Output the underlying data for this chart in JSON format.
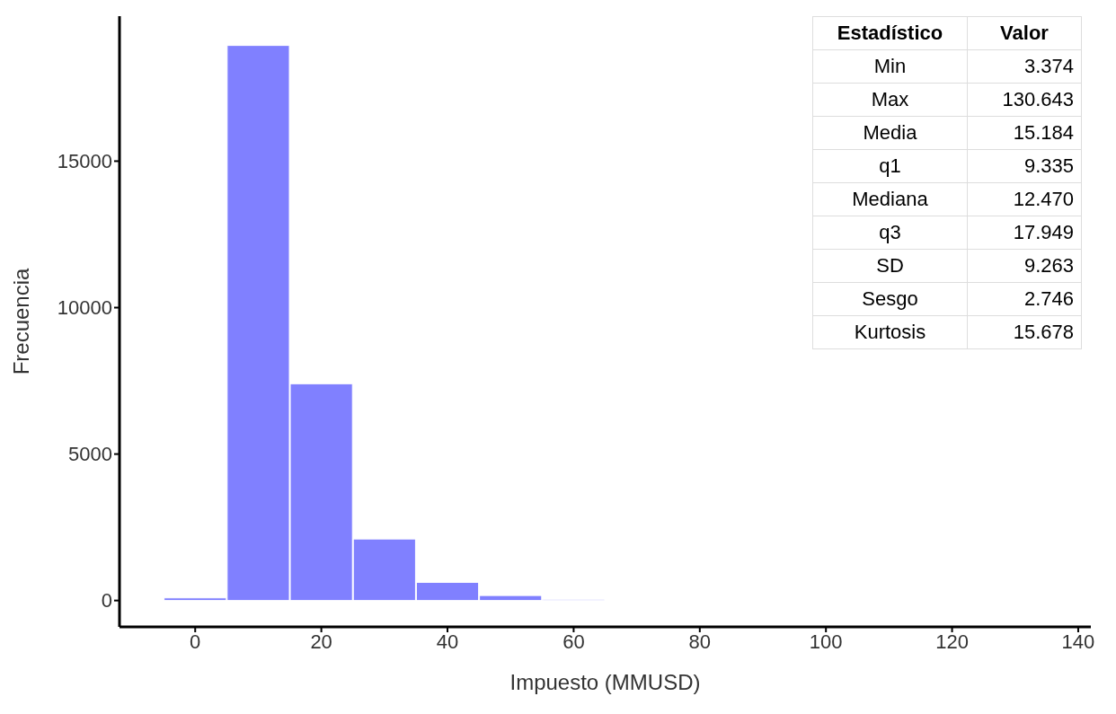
{
  "chart_data": {
    "type": "histogram",
    "xlabel": "Impuesto (MMUSD)",
    "ylabel": "Frecuencia",
    "bins": [
      -5,
      5,
      15,
      25,
      35,
      45,
      55,
      65
    ],
    "values": [
      90,
      18950,
      7400,
      2100,
      620,
      170,
      40
    ],
    "color": "#8080ff",
    "xlim": [
      -12,
      142
    ],
    "xticks": [
      0,
      20,
      40,
      60,
      80,
      100,
      120,
      140
    ],
    "ylim": [
      -900,
      19950
    ],
    "yticks": [
      0,
      5000,
      10000,
      15000
    ],
    "grid": false,
    "annotations": [
      "Estadístico",
      "Valor",
      "Min",
      "3.374",
      "Max",
      "130.643",
      "Media",
      "15.184",
      "q1",
      "9.335",
      "Mediana",
      "12.470",
      "q3",
      "17.949",
      "SD",
      "9.263",
      "Sesgo",
      "2.746",
      "Kurtosis",
      "15.678"
    ]
  }
}
